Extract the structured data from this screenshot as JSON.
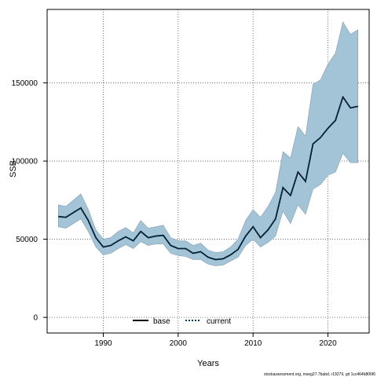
{
  "chart_data": {
    "type": "line",
    "xlabel": "Years",
    "ylabel": "SSB",
    "xlim": [
      1982.5,
      2025.5
    ],
    "ylim": [
      -10000,
      197000
    ],
    "x_ticks": [
      1990,
      2000,
      2010,
      2020
    ],
    "y_ticks": [
      0,
      50000,
      100000,
      150000
    ],
    "grid": true,
    "legend_position": "bottom-center",
    "colors": {
      "band": "#a3c4d6",
      "band_edge": "#7f9fb3",
      "base": "#000000",
      "current": "#003a5c"
    },
    "x": [
      1984,
      1985,
      1986,
      1987,
      1988,
      1989,
      1990,
      1991,
      1992,
      1993,
      1994,
      1995,
      1996,
      1997,
      1998,
      1999,
      2000,
      2001,
      2002,
      2003,
      2004,
      2005,
      2006,
      2007,
      2008,
      2009,
      2010,
      2011,
      2012,
      2013,
      2014,
      2015,
      2016,
      2017,
      2018,
      2019,
      2020,
      2021,
      2022,
      2023,
      2024
    ],
    "series": [
      {
        "name": "base",
        "style": "solid",
        "values": [
          64500,
          64000,
          67000,
          70000,
          62000,
          51000,
          45000,
          46000,
          49000,
          51500,
          49000,
          55000,
          51000,
          52000,
          52500,
          46000,
          44000,
          44000,
          41000,
          42000,
          38500,
          37000,
          37500,
          40000,
          43500,
          52000,
          58000,
          51000,
          56000,
          63000,
          83000,
          78000,
          93000,
          87000,
          111000,
          115000,
          121000,
          126000,
          141000,
          134000,
          135000
        ]
      },
      {
        "name": "current",
        "style": "dotted",
        "values": [
          64500,
          64000,
          67000,
          70000,
          62000,
          51000,
          45000,
          46000,
          49000,
          51500,
          49000,
          55000,
          51000,
          52000,
          52500,
          46000,
          44000,
          44000,
          41000,
          42000,
          38500,
          37000,
          37500,
          40000,
          43500,
          52000,
          58000,
          51000,
          56000,
          63000,
          83000,
          78000,
          93000,
          87000,
          111000,
          115000,
          121000,
          126000,
          141000,
          134000,
          135000
        ]
      }
    ],
    "band": {
      "lower": [
        58000,
        57000,
        60000,
        63000,
        55000,
        45000,
        40000,
        41000,
        44000,
        46500,
        44000,
        48500,
        46000,
        47000,
        47000,
        41000,
        39500,
        39000,
        37000,
        37000,
        34000,
        33000,
        33500,
        36000,
        38500,
        46000,
        50000,
        45000,
        48000,
        52000,
        68000,
        60000,
        72000,
        66000,
        82000,
        85000,
        91000,
        93000,
        105000,
        99000,
        99000
      ],
      "upper": [
        72000,
        71000,
        75000,
        79000,
        69000,
        56000,
        50000,
        51000,
        55000,
        57500,
        54000,
        62000,
        57000,
        58000,
        59000,
        51000,
        49000,
        49000,
        46000,
        47500,
        43000,
        41500,
        42000,
        45000,
        50000,
        62000,
        69000,
        64000,
        71000,
        80000,
        106000,
        102000,
        122000,
        116000,
        149000,
        152000,
        162000,
        169000,
        189000,
        181000,
        184000
      ]
    }
  },
  "footer_text": "stockassessment.org, mseg27.7babd, r19279, git 1cc464b806f6"
}
